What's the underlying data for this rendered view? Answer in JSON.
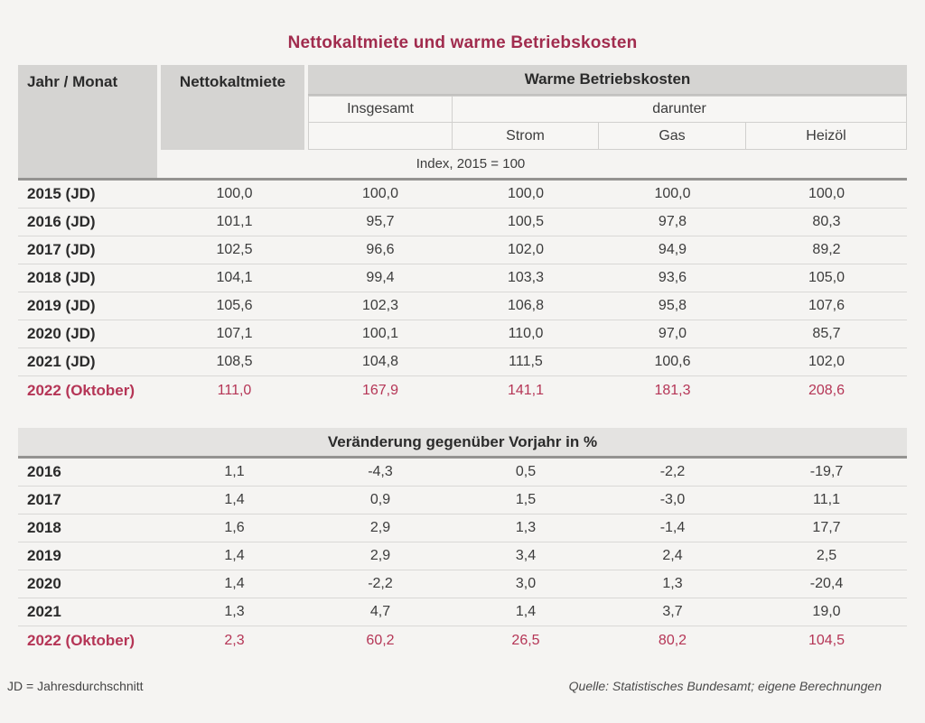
{
  "title": "Nettokaltmiete und warme Betriebskosten",
  "colors": {
    "title_red": "#a12c4e",
    "highlight_red": "#b53556",
    "header_gray": "#d5d4d2",
    "band_gray": "#e4e3e1",
    "page_bg": "#f5f4f2"
  },
  "header": {
    "col_year": "Jahr / Monat",
    "col_rent": "Nettokaltmiete",
    "group_warm": "Warme Betriebskosten",
    "col_total": "Insgesamt",
    "group_sub": "darunter",
    "col_strom": "Strom",
    "col_gas": "Gas",
    "col_heizoel": "Heizöl",
    "index_note": "Index, 2015 = 100"
  },
  "index_table": {
    "rows": [
      {
        "label": "2015 (JD)",
        "values": [
          "100,0",
          "100,0",
          "100,0",
          "100,0",
          "100,0"
        ]
      },
      {
        "label": "2016 (JD)",
        "values": [
          "101,1",
          "95,7",
          "100,5",
          "97,8",
          "80,3"
        ]
      },
      {
        "label": "2017 (JD)",
        "values": [
          "102,5",
          "96,6",
          "102,0",
          "94,9",
          "89,2"
        ]
      },
      {
        "label": "2018 (JD)",
        "values": [
          "104,1",
          "99,4",
          "103,3",
          "93,6",
          "105,0"
        ]
      },
      {
        "label": "2019 (JD)",
        "values": [
          "105,6",
          "102,3",
          "106,8",
          "95,8",
          "107,6"
        ]
      },
      {
        "label": "2020 (JD)",
        "values": [
          "107,1",
          "100,1",
          "110,0",
          "97,0",
          "85,7"
        ]
      },
      {
        "label": "2021 (JD)",
        "values": [
          "108,5",
          "104,8",
          "111,5",
          "100,6",
          "102,0"
        ]
      },
      {
        "label": "2022 (Oktober)",
        "values": [
          "111,0",
          "167,9",
          "141,1",
          "181,3",
          "208,6"
        ]
      }
    ]
  },
  "change_table": {
    "section_title": "Veränderung gegenüber Vorjahr in %",
    "rows": [
      {
        "label": "2016",
        "values": [
          "1,1",
          "-4,3",
          "0,5",
          "-2,2",
          "-19,7"
        ]
      },
      {
        "label": "2017",
        "values": [
          "1,4",
          "0,9",
          "1,5",
          "-3,0",
          "11,1"
        ]
      },
      {
        "label": "2018",
        "values": [
          "1,6",
          "2,9",
          "1,3",
          "-1,4",
          "17,7"
        ]
      },
      {
        "label": "2019",
        "values": [
          "1,4",
          "2,9",
          "3,4",
          "2,4",
          "2,5"
        ]
      },
      {
        "label": "2020",
        "values": [
          "1,4",
          "-2,2",
          "3,0",
          "1,3",
          "-20,4"
        ]
      },
      {
        "label": "2021",
        "values": [
          "1,3",
          "4,7",
          "1,4",
          "3,7",
          "19,0"
        ]
      },
      {
        "label": "2022 (Oktober)",
        "values": [
          "2,3",
          "60,2",
          "26,5",
          "80,2",
          "104,5"
        ]
      }
    ]
  },
  "footer": {
    "note": "JD = Jahresdurchschnitt",
    "source": "Quelle: Statistisches Bundesamt; eigene Berechnungen"
  },
  "chart_data": {
    "type": "table",
    "title": "Nettokaltmiete und warme Betriebskosten",
    "columns": [
      "Nettokaltmiete",
      "Warme Betriebskosten Insgesamt",
      "darunter Strom",
      "darunter Gas",
      "darunter Heizöl"
    ],
    "sections": [
      {
        "title": "Index, 2015 = 100",
        "rows": [
          {
            "period": "2015 (JD)",
            "values": [
              100.0,
              100.0,
              100.0,
              100.0,
              100.0
            ]
          },
          {
            "period": "2016 (JD)",
            "values": [
              101.1,
              95.7,
              100.5,
              97.8,
              80.3
            ]
          },
          {
            "period": "2017 (JD)",
            "values": [
              102.5,
              96.6,
              102.0,
              94.9,
              89.2
            ]
          },
          {
            "period": "2018 (JD)",
            "values": [
              104.1,
              99.4,
              103.3,
              93.6,
              105.0
            ]
          },
          {
            "period": "2019 (JD)",
            "values": [
              105.6,
              102.3,
              106.8,
              95.8,
              107.6
            ]
          },
          {
            "period": "2020 (JD)",
            "values": [
              107.1,
              100.1,
              110.0,
              97.0,
              85.7
            ]
          },
          {
            "period": "2021 (JD)",
            "values": [
              108.5,
              104.8,
              111.5,
              100.6,
              102.0
            ]
          },
          {
            "period": "2022 (Oktober)",
            "values": [
              111.0,
              167.9,
              141.1,
              181.3,
              208.6
            ],
            "highlight": true
          }
        ]
      },
      {
        "title": "Veränderung gegenüber Vorjahr in %",
        "rows": [
          {
            "period": "2016",
            "values": [
              1.1,
              -4.3,
              0.5,
              -2.2,
              -19.7
            ]
          },
          {
            "period": "2017",
            "values": [
              1.4,
              0.9,
              1.5,
              -3.0,
              11.1
            ]
          },
          {
            "period": "2018",
            "values": [
              1.6,
              2.9,
              1.3,
              -1.4,
              17.7
            ]
          },
          {
            "period": "2019",
            "values": [
              1.4,
              2.9,
              3.4,
              2.4,
              2.5
            ]
          },
          {
            "period": "2020",
            "values": [
              1.4,
              -2.2,
              3.0,
              1.3,
              -20.4
            ]
          },
          {
            "period": "2021",
            "values": [
              1.3,
              4.7,
              1.4,
              3.7,
              19.0
            ]
          },
          {
            "period": "2022 (Oktober)",
            "values": [
              2.3,
              60.2,
              26.5,
              80.2,
              104.5
            ],
            "highlight": true
          }
        ]
      }
    ]
  }
}
